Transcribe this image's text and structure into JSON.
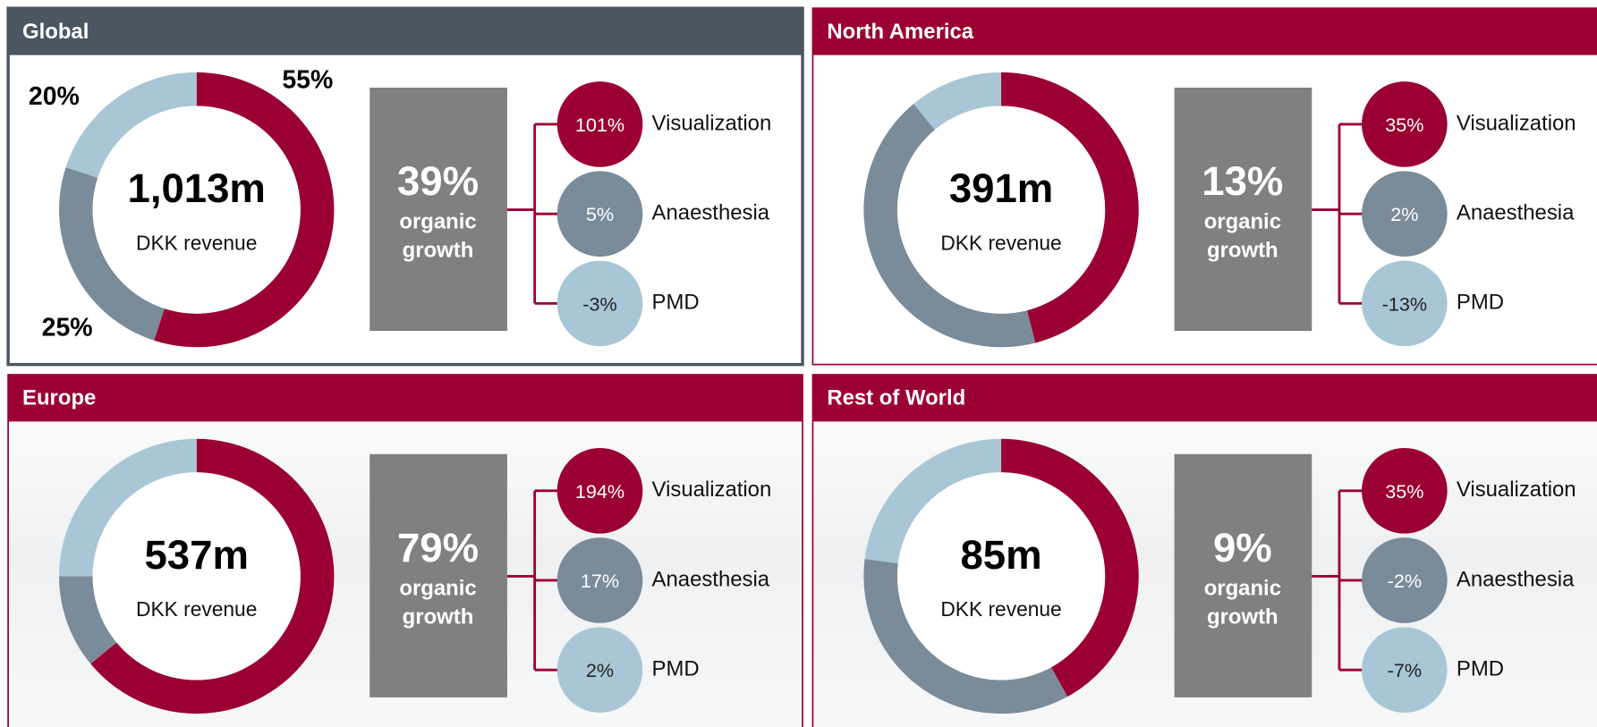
{
  "panels": [
    {
      "title": "Global",
      "revenue": "1,013m",
      "revenue_label": "DKK revenue",
      "growth": "39%",
      "growth_label": [
        "organic",
        "growth"
      ],
      "segment_growth": [
        "101%",
        "5%",
        "-3%"
      ],
      "chart_data": {
        "type": "pie",
        "categories": [
          "Visualization",
          "Anaesthesia",
          "PMD"
        ],
        "values": [
          55,
          25,
          20
        ],
        "value_labels": [
          "55%",
          "25%",
          "20%"
        ],
        "colors": [
          "#9b0032",
          "#7a8b99",
          "#a9c6d6"
        ]
      }
    },
    {
      "title": "North America",
      "revenue": "391m",
      "revenue_label": "DKK revenue",
      "growth": "13%",
      "growth_label": [
        "organic",
        "growth"
      ],
      "segment_growth": [
        "35%",
        "2%",
        "-13%"
      ],
      "chart_data": {
        "type": "pie",
        "categories": [
          "Visualization",
          "Anaesthesia",
          "PMD"
        ],
        "values": [
          46,
          43,
          11
        ],
        "colors": [
          "#9b0032",
          "#7a8b99",
          "#a9c6d6"
        ]
      }
    },
    {
      "title": "Europe",
      "revenue": "537m",
      "revenue_label": "DKK revenue",
      "growth": "79%",
      "growth_label": [
        "organic",
        "growth"
      ],
      "segment_growth": [
        "194%",
        "17%",
        "2%"
      ],
      "chart_data": {
        "type": "pie",
        "categories": [
          "Visualization",
          "Anaesthesia",
          "PMD"
        ],
        "values": [
          64,
          11,
          25
        ],
        "colors": [
          "#9b0032",
          "#7a8b99",
          "#a9c6d6"
        ]
      }
    },
    {
      "title": "Rest of World",
      "revenue": "85m",
      "revenue_label": "DKK revenue",
      "growth": "9%",
      "growth_label": [
        "organic",
        "growth"
      ],
      "segment_growth": [
        "35%",
        "-2%",
        "-7%"
      ],
      "chart_data": {
        "type": "pie",
        "categories": [
          "Visualization",
          "Anaesthesia",
          "PMD"
        ],
        "values": [
          42,
          35,
          23
        ],
        "colors": [
          "#9b0032",
          "#7a8b99",
          "#a9c6d6"
        ]
      }
    }
  ]
}
